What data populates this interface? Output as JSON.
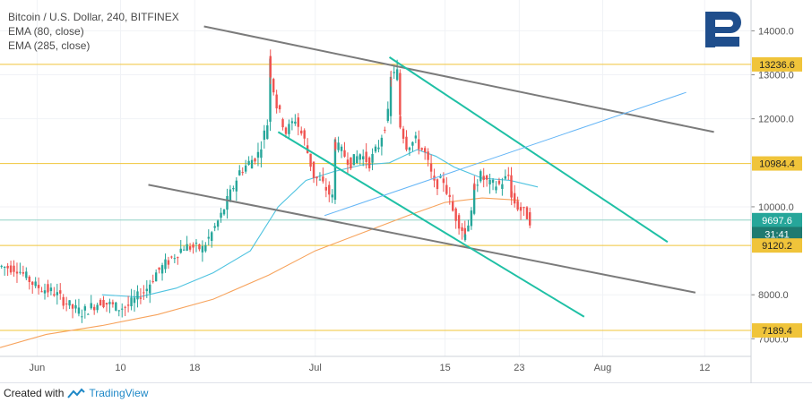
{
  "header": {
    "symbol_line": "Bitcoin / U.S. Dollar, 240, BITFINEX",
    "ema_fast": "EMA (80, close)",
    "ema_slow": "EMA (285, close)"
  },
  "footer": {
    "created_with": "Created with",
    "brand": "TradingView"
  },
  "colors": {
    "up": "#26a69a",
    "down": "#ef5350",
    "ema_fast": "#4fc3e0",
    "ema_slow": "#f7a35c",
    "level": "#f0c43a",
    "trend_gray": "#7b7b7b",
    "trend_teal": "#1fc0a5",
    "trend_blue": "#64b5f6",
    "logo": "#1f4e8c"
  },
  "chart_data": {
    "type": "candlestick",
    "title": "Bitcoin / U.S. Dollar, 240, BITFINEX",
    "x_ticks": [
      "Jun",
      "10",
      "18",
      "Jul",
      "15",
      "23",
      "Aug",
      "12"
    ],
    "y_ticks": [
      "7000.0",
      "8000.0",
      "10000.0",
      "12000.0",
      "13000.0",
      "14000.0"
    ],
    "ylim": [
      6600,
      14700
    ],
    "price_labels": [
      {
        "label": "13236.6",
        "value": 13236.6,
        "kind": "level"
      },
      {
        "label": "10984.4",
        "value": 10984.4,
        "kind": "level"
      },
      {
        "label": "9697.6",
        "value": 9697.6,
        "kind": "last"
      },
      {
        "label": "31:41",
        "value": 9380,
        "kind": "timer"
      },
      {
        "label": "9120.2",
        "value": 9120.2,
        "kind": "level"
      },
      {
        "label": "7189.4",
        "value": 7189.4,
        "kind": "level"
      }
    ],
    "horizontal_levels": [
      13236.6,
      10984.4,
      9120.2,
      7189.4
    ],
    "last_price": 9697.6,
    "ohlc_path": [
      [
        "2019-05-28",
        8650
      ],
      [
        "2019-05-30",
        8600
      ],
      [
        "2019-06-01",
        8200
      ],
      [
        "2019-06-03",
        8050
      ],
      [
        "2019-06-05",
        7700
      ],
      [
        "2019-06-06",
        7600
      ],
      [
        "2019-06-08",
        7850
      ],
      [
        "2019-06-10",
        7700
      ],
      [
        "2019-06-11",
        7750
      ],
      [
        "2019-06-13",
        8150
      ],
      [
        "2019-06-14",
        8500
      ],
      [
        "2019-06-16",
        8900
      ],
      [
        "2019-06-17",
        9100
      ],
      [
        "2019-06-19",
        9050
      ],
      [
        "2019-06-20",
        9400
      ],
      [
        "2019-06-21",
        9800
      ],
      [
        "2019-06-22",
        10300
      ],
      [
        "2019-06-23",
        10800
      ],
      [
        "2019-06-24",
        11000
      ],
      [
        "2019-06-25",
        11200
      ],
      [
        "2019-06-26",
        11900
      ],
      [
        "2019-06-26",
        13400
      ],
      [
        "2019-06-27",
        12300
      ],
      [
        "2019-06-28",
        11700
      ],
      [
        "2019-06-29",
        12000
      ],
      [
        "2019-06-30",
        11500
      ],
      [
        "2019-07-01",
        10700
      ],
      [
        "2019-07-02",
        10500
      ],
      [
        "2019-07-03",
        10200
      ],
      [
        "2019-07-03",
        11500
      ],
      [
        "2019-07-05",
        11000
      ],
      [
        "2019-07-06",
        11200
      ],
      [
        "2019-07-07",
        11000
      ],
      [
        "2019-07-08",
        11400
      ],
      [
        "2019-07-09",
        12100
      ],
      [
        "2019-07-09",
        12900
      ],
      [
        "2019-07-10",
        13050
      ],
      [
        "2019-07-10",
        12100
      ],
      [
        "2019-07-11",
        11400
      ],
      [
        "2019-07-12",
        11500
      ],
      [
        "2019-07-13",
        11200
      ],
      [
        "2019-07-14",
        10500
      ],
      [
        "2019-07-15",
        10600
      ],
      [
        "2019-07-16",
        9900
      ],
      [
        "2019-07-17",
        9500
      ],
      [
        "2019-07-17",
        9300
      ],
      [
        "2019-07-18",
        9800
      ],
      [
        "2019-07-18",
        10400
      ],
      [
        "2019-07-19",
        10700
      ],
      [
        "2019-07-20",
        10500
      ],
      [
        "2019-07-21",
        10500
      ],
      [
        "2019-07-22",
        10700
      ],
      [
        "2019-07-22",
        10300
      ],
      [
        "2019-07-23",
        10000
      ],
      [
        "2019-07-24",
        9800
      ],
      [
        "2019-07-24",
        9700
      ]
    ],
    "ema_80": [
      [
        "2019-06-08",
        8000
      ],
      [
        "2019-06-12",
        7950
      ],
      [
        "2019-06-16",
        8150
      ],
      [
        "2019-06-20",
        8500
      ],
      [
        "2019-06-24",
        9000
      ],
      [
        "2019-06-27",
        10000
      ],
      [
        "2019-06-30",
        10600
      ],
      [
        "2019-07-03",
        10800
      ],
      [
        "2019-07-06",
        10950
      ],
      [
        "2019-07-09",
        11000
      ],
      [
        "2019-07-12",
        11300
      ],
      [
        "2019-07-14",
        11150
      ],
      [
        "2019-07-16",
        10900
      ],
      [
        "2019-07-19",
        10650
      ],
      [
        "2019-07-22",
        10600
      ],
      [
        "2019-07-25",
        10450
      ]
    ],
    "ema_285": [
      [
        "2019-05-28",
        6800
      ],
      [
        "2019-06-02",
        7100
      ],
      [
        "2019-06-08",
        7300
      ],
      [
        "2019-06-14",
        7550
      ],
      [
        "2019-06-20",
        7900
      ],
      [
        "2019-06-26",
        8450
      ],
      [
        "2019-07-01",
        9000
      ],
      [
        "2019-07-06",
        9400
      ],
      [
        "2019-07-11",
        9800
      ],
      [
        "2019-07-15",
        10100
      ],
      [
        "2019-07-19",
        10200
      ],
      [
        "2019-07-23",
        10150
      ]
    ],
    "trend_lines": [
      {
        "kind": "gray",
        "from": [
          "2019-06-19",
          14100
        ],
        "to": [
          "2019-08-13",
          11700
        ]
      },
      {
        "kind": "gray",
        "from": [
          "2019-06-13",
          10500
        ],
        "to": [
          "2019-08-11",
          8050
        ]
      },
      {
        "kind": "teal",
        "from": [
          "2019-07-09",
          13400
        ],
        "to": [
          "2019-08-08",
          9200
        ]
      },
      {
        "kind": "teal",
        "from": [
          "2019-06-27",
          11700
        ],
        "to": [
          "2019-07-30",
          7500
        ]
      },
      {
        "kind": "blue",
        "from": [
          "2019-07-02",
          9800
        ],
        "to": [
          "2019-08-10",
          12600
        ]
      }
    ]
  }
}
